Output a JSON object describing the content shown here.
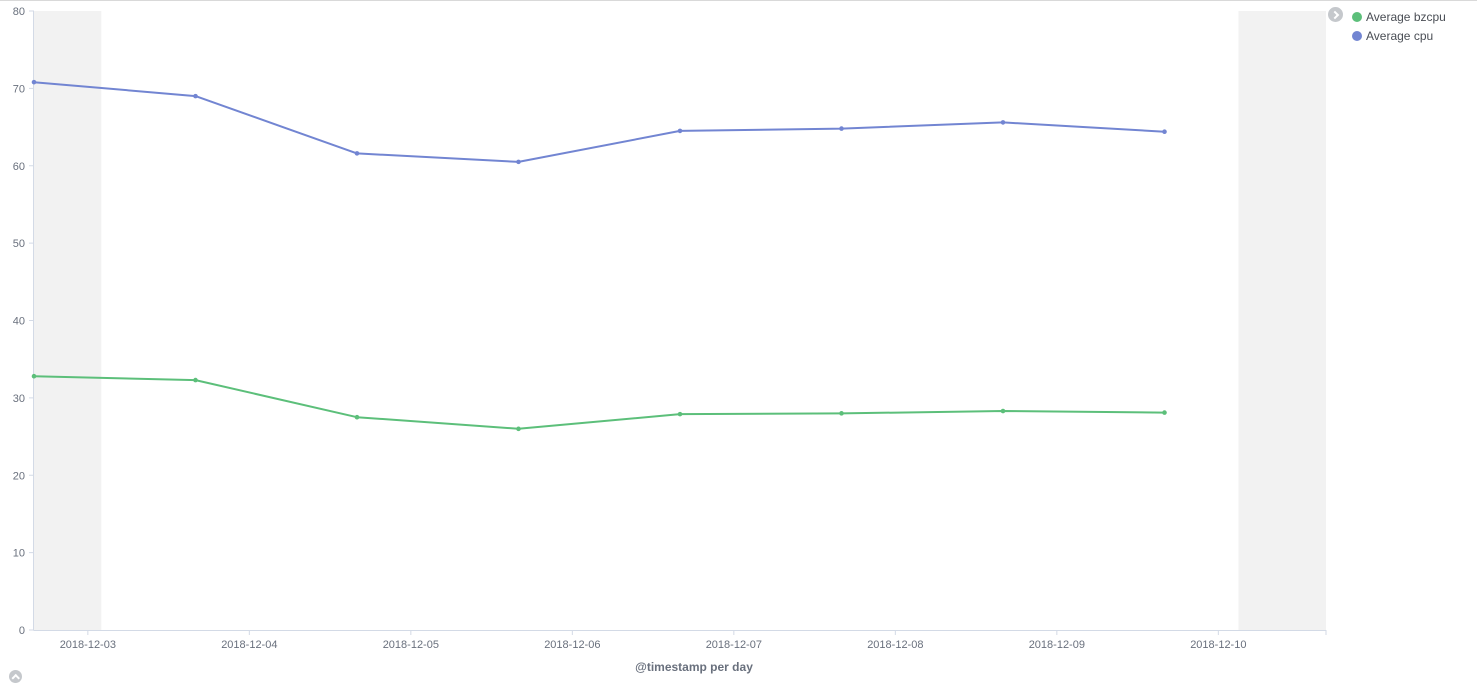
{
  "chart_data": {
    "type": "line",
    "title": "",
    "xlabel": "@timestamp per day",
    "ylabel": "",
    "ylim": [
      0,
      80
    ],
    "y_ticks": [
      "0",
      "10",
      "20",
      "30",
      "40",
      "50",
      "60",
      "70",
      "80"
    ],
    "x_ticks": [
      "2018-12-03",
      "2018-12-04",
      "2018-12-05",
      "2018-12-06",
      "2018-12-07",
      "2018-12-08",
      "2018-12-09",
      "2018-12-10"
    ],
    "x_range": [
      "2018-12-02T16:00",
      "2018-12-10T16:00"
    ],
    "shaded_ranges": [
      [
        "2018-12-02T16:00",
        "2018-12-03T02:00"
      ],
      [
        "2018-12-10T03:00",
        "2018-12-10T16:00"
      ]
    ],
    "grid": false,
    "legend_position": "top-right",
    "x": [
      "2018-12-02T16:00",
      "2018-12-03T16:00",
      "2018-12-04T16:00",
      "2018-12-05T16:00",
      "2018-12-06T16:00",
      "2018-12-07T16:00",
      "2018-12-08T16:00",
      "2018-12-09T16:00"
    ],
    "series": [
      {
        "name": "Average bzcpu",
        "color": "#54b399",
        "values": [
          32.8,
          32.3,
          27.5,
          26.0,
          27.9,
          28.0,
          28.3,
          28.1
        ]
      },
      {
        "name": "Average cpu",
        "color": "#6092c0",
        "values": [
          70.8,
          69.0,
          61.6,
          60.5,
          64.5,
          64.8,
          65.6,
          64.4
        ]
      }
    ]
  },
  "colors": {
    "bzcpu_line": "#5cbf7a",
    "cpu_line": "#7285d2",
    "shade": "#f2f2f2",
    "axis": "#d3dae6"
  },
  "legend": {
    "toggle_icon": "chevron-right-icon",
    "items": [
      "Average bzcpu",
      "Average cpu"
    ]
  },
  "footer": {
    "toggle_icon": "chevron-up-icon"
  }
}
